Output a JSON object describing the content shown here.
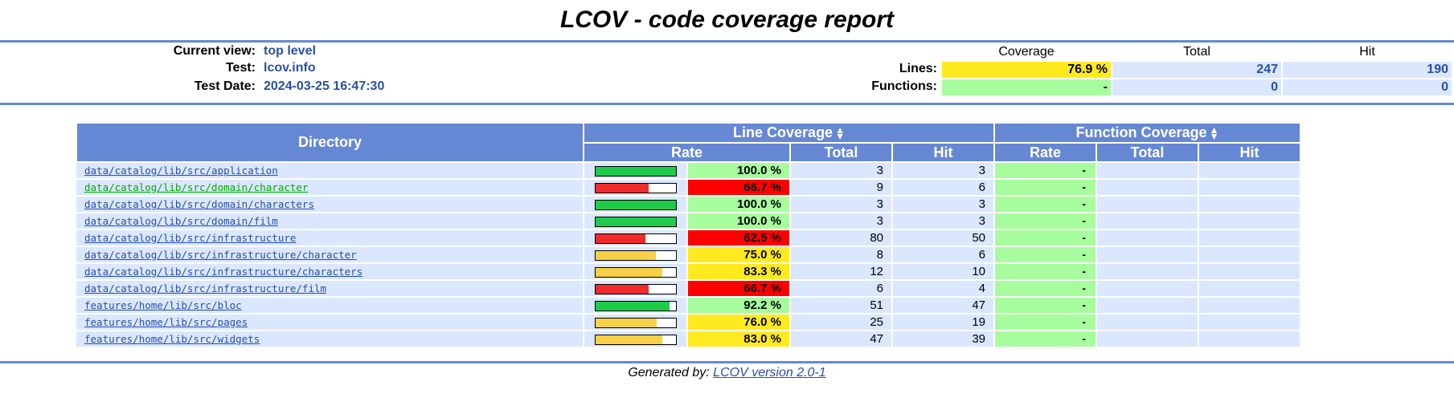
{
  "title": "LCOV - code coverage report",
  "header": {
    "current_view_label": "Current view:",
    "current_view_value": "top level",
    "test_label": "Test:",
    "test_value": "lcov.info",
    "date_label": "Test Date:",
    "date_value": "2024-03-25 16:47:30"
  },
  "summary": {
    "col_coverage": "Coverage",
    "col_total": "Total",
    "col_hit": "Hit",
    "lines_label": "Lines:",
    "lines_coverage": "76.9 %",
    "lines_total": "247",
    "lines_hit": "190",
    "functions_label": "Functions:",
    "functions_coverage": "-",
    "functions_total": "0",
    "functions_hit": "0"
  },
  "table": {
    "directory_header": "Directory",
    "line_coverage_header": "Line Coverage",
    "function_coverage_header": "Function Coverage",
    "rate_header": "Rate",
    "total_header": "Total",
    "hit_header": "Hit",
    "fn_rate_header": "Rate",
    "fn_total_header": "Total",
    "fn_hit_header": "Hit",
    "rows": [
      {
        "dir": "data/catalog/lib/src/application",
        "pct": "100.0 %",
        "rate": 100.0,
        "level": "hi",
        "total": "3",
        "hit": "3",
        "fn": "-",
        "visited": false
      },
      {
        "dir": "data/catalog/lib/src/domain/character",
        "pct": "66.7 %",
        "rate": 66.7,
        "level": "lo",
        "total": "9",
        "hit": "6",
        "fn": "-",
        "visited": true
      },
      {
        "dir": "data/catalog/lib/src/domain/characters",
        "pct": "100.0 %",
        "rate": 100.0,
        "level": "hi",
        "total": "3",
        "hit": "3",
        "fn": "-",
        "visited": false
      },
      {
        "dir": "data/catalog/lib/src/domain/film",
        "pct": "100.0 %",
        "rate": 100.0,
        "level": "hi",
        "total": "3",
        "hit": "3",
        "fn": "-",
        "visited": false
      },
      {
        "dir": "data/catalog/lib/src/infrastructure",
        "pct": "62.5 %",
        "rate": 62.5,
        "level": "lo",
        "total": "80",
        "hit": "50",
        "fn": "-",
        "visited": false
      },
      {
        "dir": "data/catalog/lib/src/infrastructure/character",
        "pct": "75.0 %",
        "rate": 75.0,
        "level": "med",
        "total": "8",
        "hit": "6",
        "fn": "-",
        "visited": false
      },
      {
        "dir": "data/catalog/lib/src/infrastructure/characters",
        "pct": "83.3 %",
        "rate": 83.3,
        "level": "med",
        "total": "12",
        "hit": "10",
        "fn": "-",
        "visited": false
      },
      {
        "dir": "data/catalog/lib/src/infrastructure/film",
        "pct": "66.7 %",
        "rate": 66.7,
        "level": "lo",
        "total": "6",
        "hit": "4",
        "fn": "-",
        "visited": false
      },
      {
        "dir": "features/home/lib/src/bloc",
        "pct": "92.2 %",
        "rate": 92.2,
        "level": "hi",
        "total": "51",
        "hit": "47",
        "fn": "-",
        "visited": false
      },
      {
        "dir": "features/home/lib/src/pages",
        "pct": "76.0 %",
        "rate": 76.0,
        "level": "med",
        "total": "25",
        "hit": "19",
        "fn": "-",
        "visited": false
      },
      {
        "dir": "features/home/lib/src/widgets",
        "pct": "83.0 %",
        "rate": 83.0,
        "level": "med",
        "total": "47",
        "hit": "39",
        "fn": "-",
        "visited": false
      }
    ]
  },
  "colors": {
    "hi_cell": "#a7fc9d",
    "med_cell": "#ffea20",
    "lo_cell": "#ff0000",
    "hi_bar": "#1ecc4a",
    "med_bar": "#f8d048",
    "lo_bar": "#f02b2b",
    "header_bg": "#6688d4",
    "row_bg": "#dae7fe"
  },
  "footer": {
    "prefix": "Generated by:",
    "link": "LCOV version 2.0-1"
  }
}
